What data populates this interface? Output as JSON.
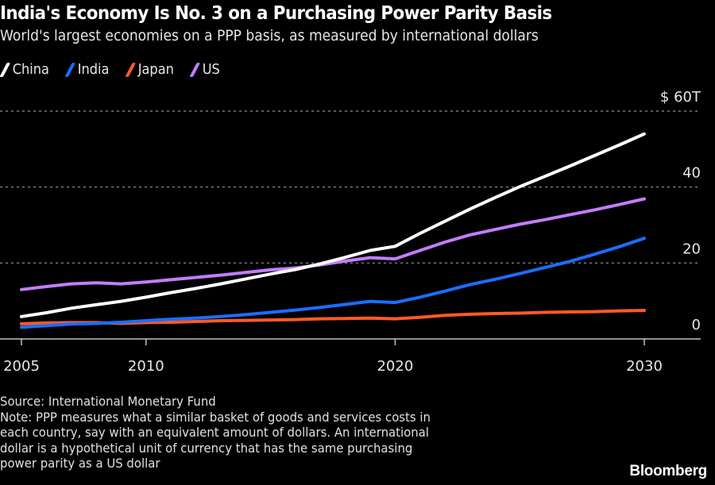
{
  "header": {
    "title": "India's Economy Is No. 3 on a Purchasing Power Parity Basis",
    "subtitle": "World's largest economies on a PPP basis, as measured by international dollars"
  },
  "footer": {
    "source": "Source: International Monetary Fund",
    "note_lines": [
      "Note: PPP measures what a similar basket of goods and services costs in",
      "each country, say with an equivalent amount of dollars. An international",
      "dollar is a hypothetical unit of currency that has the same purchasing",
      "power parity as a US dollar"
    ],
    "brand": "Bloomberg"
  },
  "colors": {
    "background": "#000000",
    "China": "#ffffff",
    "India": "#1a6eff",
    "Japan": "#ff5a26",
    "US": "#c27dff",
    "grid": "#7a7a7a",
    "axis": "#bfbfbf"
  },
  "chart_data": {
    "type": "line",
    "title": "India's Economy Is No. 3 on a Purchasing Power Parity Basis",
    "subtitle": "World's largest economies on a PPP basis, as measured by international dollars",
    "xlabel": "",
    "ylabel": "",
    "x": [
      2005,
      2006,
      2007,
      2008,
      2009,
      2010,
      2011,
      2012,
      2013,
      2014,
      2015,
      2016,
      2017,
      2018,
      2019,
      2020,
      2021,
      2022,
      2023,
      2024,
      2025,
      2026,
      2027,
      2028,
      2029,
      2030
    ],
    "xticks": [
      2005,
      2010,
      2020,
      2030
    ],
    "xtick_labels": [
      "2005",
      "2010",
      "2020",
      "2030"
    ],
    "xlim": [
      2005,
      2032.3
    ],
    "ylim": [
      0,
      60
    ],
    "yticks": [
      0,
      20,
      40,
      60
    ],
    "ytick_labels": [
      "0",
      "20",
      "40",
      "$ 60T"
    ],
    "y_unit": "trillion international dollars",
    "grid": true,
    "legend_position": "top-left",
    "series": [
      {
        "name": "China",
        "values": [
          5.9,
          6.9,
          8.1,
          9.0,
          9.9,
          11.0,
          12.2,
          13.3,
          14.5,
          15.8,
          17.1,
          18.3,
          19.8,
          21.5,
          23.3,
          24.4,
          27.8,
          31.0,
          34.2,
          37.2,
          40.1,
          42.8,
          45.5,
          48.3,
          51.1,
          54.0
        ]
      },
      {
        "name": "India",
        "values": [
          3.1,
          3.5,
          3.9,
          4.1,
          4.4,
          4.8,
          5.2,
          5.5,
          5.9,
          6.4,
          7.0,
          7.6,
          8.3,
          9.1,
          9.9,
          9.6,
          11.0,
          12.6,
          14.3,
          15.7,
          17.2,
          18.8,
          20.4,
          22.3,
          24.3,
          26.5
        ]
      },
      {
        "name": "Japan",
        "values": [
          4.0,
          4.2,
          4.3,
          4.3,
          4.1,
          4.3,
          4.4,
          4.6,
          4.8,
          4.9,
          5.0,
          5.1,
          5.3,
          5.4,
          5.5,
          5.3,
          5.7,
          6.2,
          6.5,
          6.7,
          6.8,
          7.0,
          7.1,
          7.2,
          7.4,
          7.5
        ]
      },
      {
        "name": "US",
        "values": [
          13.0,
          13.8,
          14.5,
          14.8,
          14.5,
          15.0,
          15.6,
          16.2,
          16.8,
          17.5,
          18.2,
          18.7,
          19.5,
          20.5,
          21.4,
          21.1,
          23.3,
          25.5,
          27.4,
          28.8,
          30.2,
          31.4,
          32.7,
          34.0,
          35.4,
          36.9
        ]
      }
    ]
  }
}
